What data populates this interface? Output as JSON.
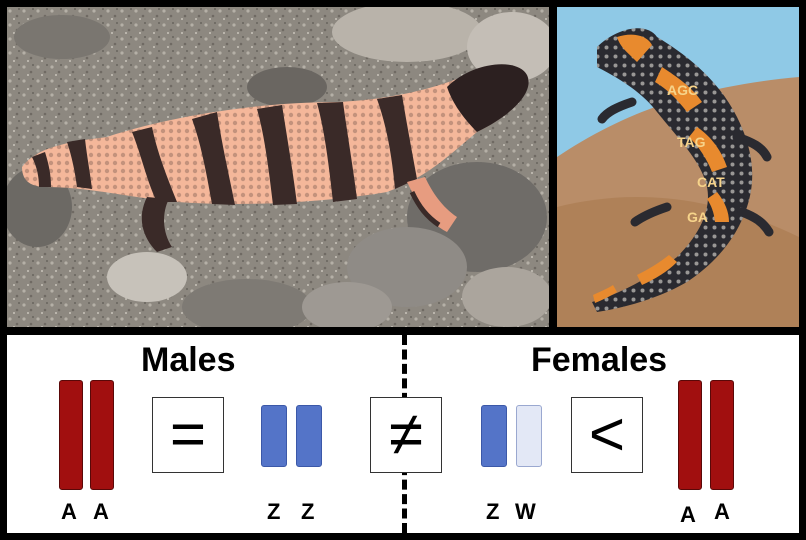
{
  "photos": {
    "left": {
      "subject": "Gila monster on rocks"
    },
    "right": {
      "subject": "Illustrated Gila monster with DNA letters",
      "letters": [
        "A",
        "G",
        "C",
        "T",
        "A",
        "G",
        "C",
        "A",
        "T",
        "G"
      ]
    }
  },
  "males": {
    "heading": "Males",
    "autosome_labels": [
      "A",
      "A"
    ],
    "operator": "=",
    "sex_chrom_labels": [
      "Z",
      "Z"
    ]
  },
  "middle_operator": "≠",
  "females": {
    "heading": "Females",
    "sex_chrom_labels": [
      "Z",
      "W"
    ],
    "operator": "<",
    "autosome_labels": [
      "A",
      "A"
    ]
  },
  "colors": {
    "autosome": "#a10f0f",
    "z_chromosome": "#5474c8",
    "w_chromosome": "#e3e8f6"
  }
}
